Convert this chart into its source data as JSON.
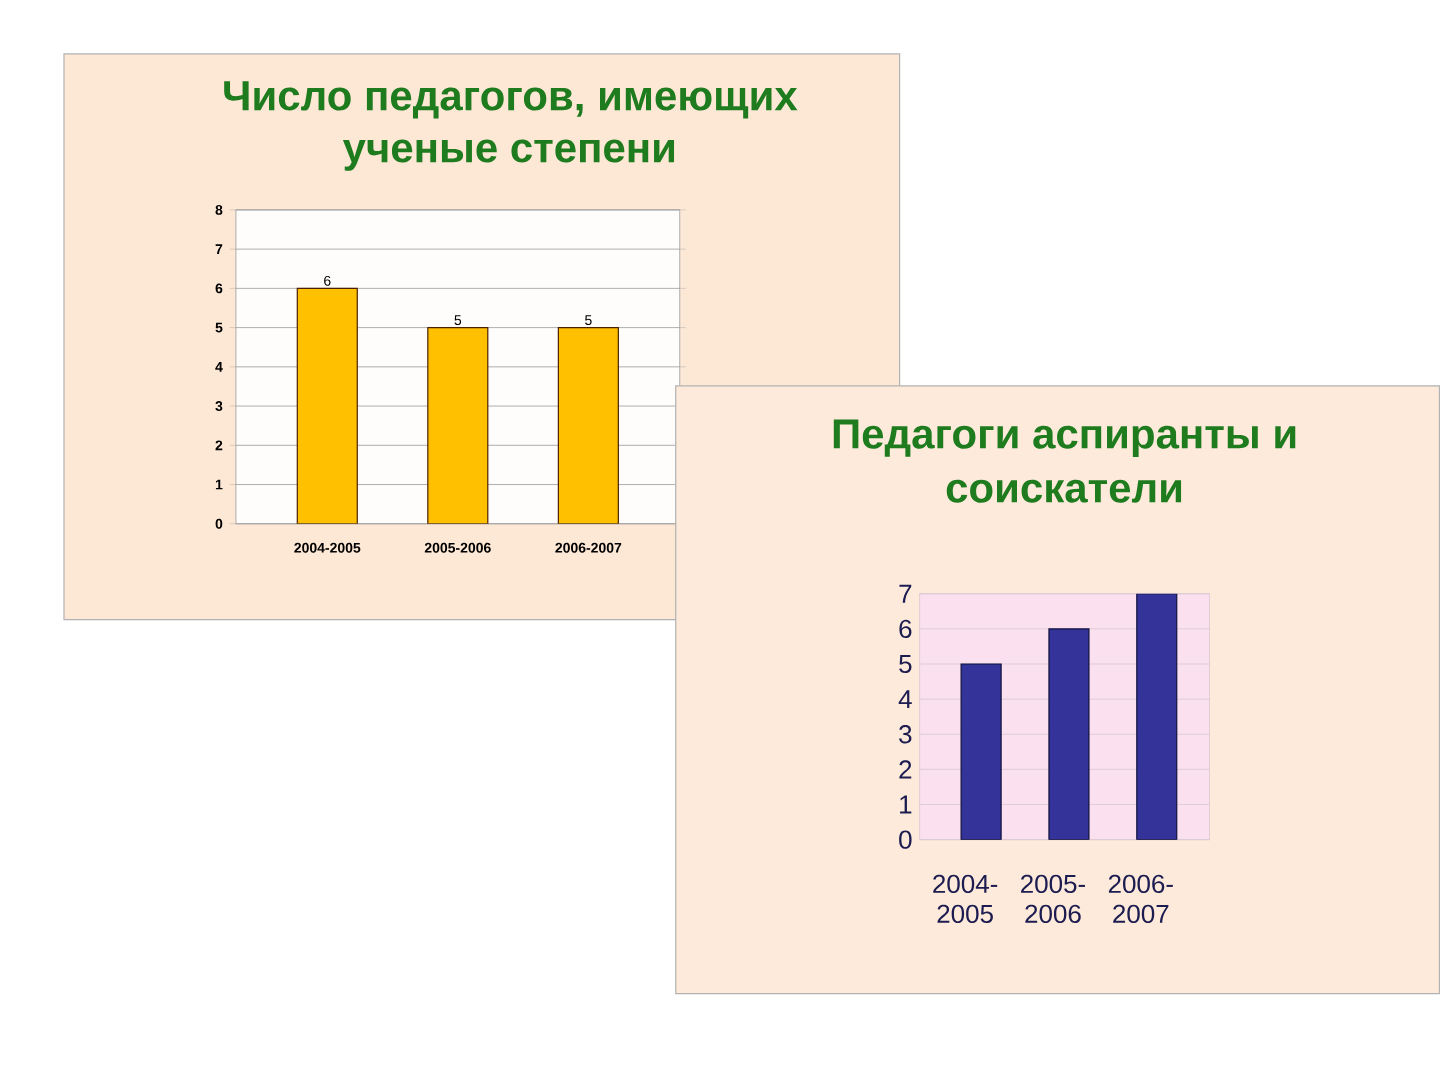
{
  "chart_data": [
    {
      "type": "bar",
      "title": "Число педагогов, имеющих ученые степени",
      "categories": [
        "2004-2005",
        "2005-2006",
        "2006-2007"
      ],
      "values": [
        6,
        5,
        5
      ],
      "color": "#ffc000",
      "ylim": [
        0,
        8
      ],
      "yticks": [
        0,
        1,
        2,
        3,
        4,
        5,
        6,
        7,
        8
      ],
      "grid": "y",
      "data_labels": true
    },
    {
      "type": "bar",
      "title": "Педагоги аспиранты и соискатели",
      "categories": [
        "2004-2005",
        "2005-2006",
        "2006-2007"
      ],
      "values": [
        5,
        6,
        7
      ],
      "color": "#333399",
      "ylim": [
        0,
        7
      ],
      "yticks": [
        0,
        1,
        2,
        3,
        4,
        5,
        6,
        7
      ],
      "grid": "y"
    }
  ]
}
